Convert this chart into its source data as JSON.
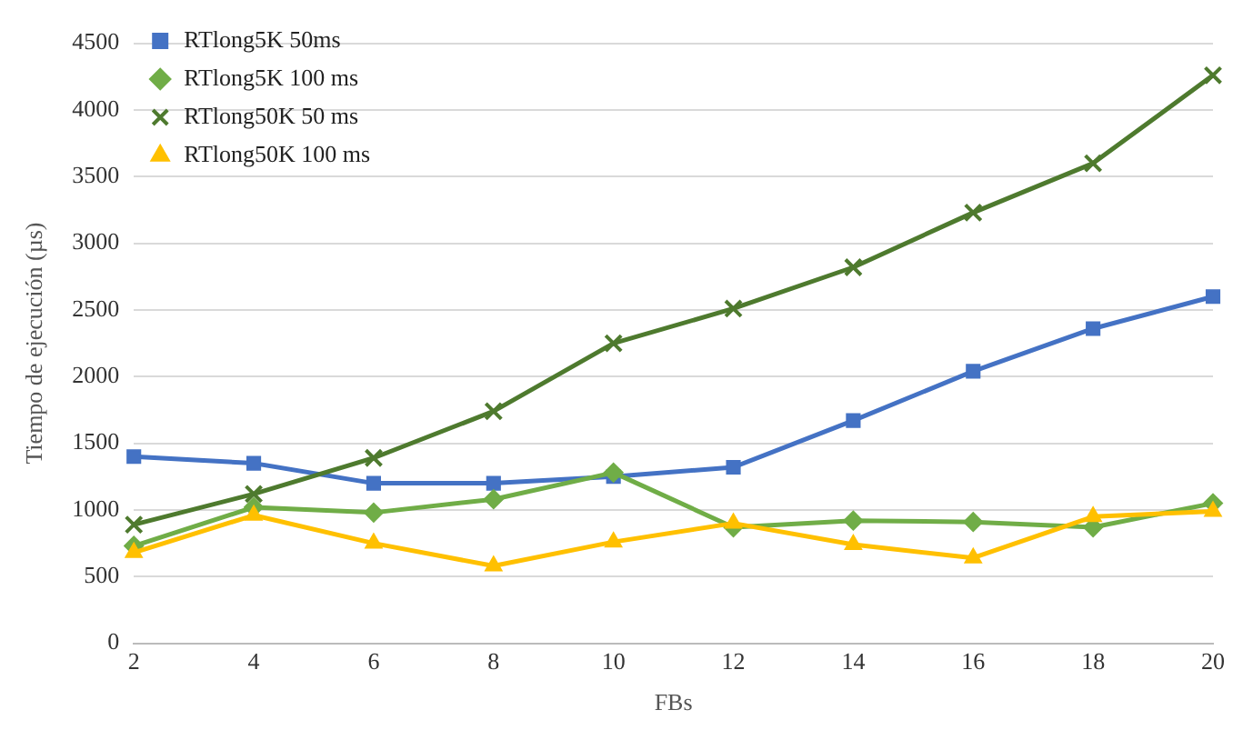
{
  "chart_data": {
    "type": "line",
    "xlabel": "FBs",
    "ylabel": "Tiempo de ejecución (µs)",
    "categories": [
      "2",
      "4",
      "6",
      "8",
      "10",
      "12",
      "14",
      "16",
      "18",
      "20"
    ],
    "series": [
      {
        "name": "RTlong5K 50ms",
        "color": "#4472c4",
        "marker": "square",
        "values": [
          1400,
          1350,
          1200,
          1200,
          1250,
          1320,
          1670,
          2040,
          2360,
          2600
        ]
      },
      {
        "name": "RTlong5K 100 ms",
        "color": "#70ad47",
        "marker": "diamond",
        "values": [
          730,
          1020,
          980,
          1080,
          1280,
          870,
          920,
          910,
          870,
          1050
        ]
      },
      {
        "name": "RTlong50K 50 ms",
        "color": "#4e7a2e",
        "marker": "cross",
        "values": [
          890,
          1120,
          1390,
          1740,
          2250,
          2510,
          2820,
          3230,
          3600,
          4260
        ]
      },
      {
        "name": "RTlong50K 100 ms",
        "color": "#ffc000",
        "marker": "triangle",
        "values": [
          680,
          960,
          750,
          580,
          760,
          900,
          740,
          640,
          950,
          990
        ]
      }
    ],
    "ylim": [
      0,
      4500
    ],
    "yticks": [
      0,
      500,
      1000,
      1500,
      2000,
      2500,
      3000,
      3500,
      4000,
      4500
    ],
    "grid": "y",
    "legend": "top left",
    "line_style": "solid"
  }
}
